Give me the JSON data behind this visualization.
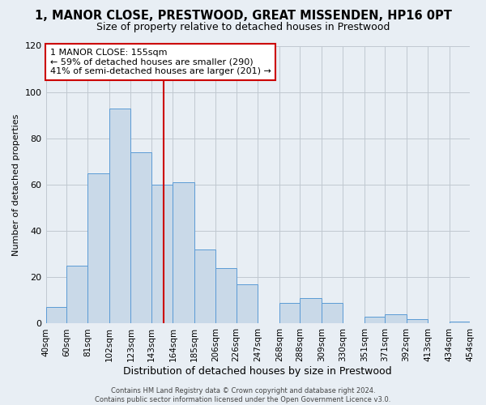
{
  "title": "1, MANOR CLOSE, PRESTWOOD, GREAT MISSENDEN, HP16 0PT",
  "subtitle": "Size of property relative to detached houses in Prestwood",
  "xlabel": "Distribution of detached houses by size in Prestwood",
  "ylabel": "Number of detached properties",
  "bin_edges": [
    40,
    60,
    81,
    102,
    123,
    143,
    164,
    185,
    206,
    226,
    247,
    268,
    288,
    309,
    330,
    351,
    371,
    392,
    413,
    434,
    454
  ],
  "bar_heights": [
    7,
    25,
    65,
    93,
    74,
    60,
    61,
    32,
    24,
    17,
    0,
    9,
    11,
    9,
    0,
    3,
    4,
    2,
    0,
    1
  ],
  "bar_facecolor": "#c9d9e8",
  "bar_edgecolor": "#5b9bd5",
  "background_color": "#e8eef4",
  "grid_color": "#c0c8d0",
  "vline_x": 155,
  "vline_color": "#cc0000",
  "annotation_line1": "1 MANOR CLOSE: 155sqm",
  "annotation_line2": "← 59% of detached houses are smaller (290)",
  "annotation_line3": "41% of semi-detached houses are larger (201) →",
  "annotation_box_color": "#cc0000",
  "annotation_fontsize": 8,
  "title_fontsize": 10.5,
  "subtitle_fontsize": 9,
  "footer_text": "Contains HM Land Registry data © Crown copyright and database right 2024.\nContains public sector information licensed under the Open Government Licence v3.0.",
  "ylim": [
    0,
    120
  ],
  "yticks": [
    0,
    20,
    40,
    60,
    80,
    100,
    120
  ]
}
